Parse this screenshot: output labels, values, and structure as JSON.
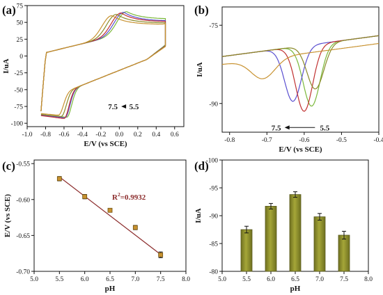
{
  "panel_labels": {
    "a": "(a)",
    "b": "(b)",
    "c": "(c)",
    "d": "(d)"
  },
  "colors": {
    "c55": "#7ab83a",
    "c60": "#5a4fd0",
    "c65": "#c03030",
    "c70": "#8a8a28",
    "c75": "#c89230",
    "fit": "#8b2b2b",
    "bar": "#a5a638",
    "bar_edge": "#5a5a1e"
  },
  "chart_data": [
    {
      "type": "line",
      "panel": "a",
      "xlabel": "E/V (vs SCE)",
      "ylabel": "I/uA",
      "xlim": [
        -1.0,
        0.7
      ],
      "ylim": [
        -105,
        75
      ],
      "x_ticks": [
        "-1.0",
        "-0.8",
        "-0.6",
        "-0.4",
        "-0.2",
        "0.0",
        "0.2",
        "0.4",
        "0.6"
      ],
      "y_ticks": [
        "-100",
        "-75",
        "-50",
        "-25",
        "0",
        "25",
        "50",
        "75"
      ],
      "annotation": {
        "left": "7.5",
        "right": "5.5"
      },
      "series": [
        {
          "color_key": "c55",
          "anodic_peak": [
            0.08,
            66
          ],
          "cathodic_peak": [
            -0.57,
            -91
          ],
          "final_current": [
            0.5,
            55
          ]
        },
        {
          "color_key": "c60",
          "anodic_peak": [
            0.05,
            65
          ],
          "cathodic_peak": [
            -0.59,
            -92
          ],
          "final_current": [
            0.5,
            52
          ]
        },
        {
          "color_key": "c65",
          "anodic_peak": [
            0.02,
            64
          ],
          "cathodic_peak": [
            -0.6,
            -93
          ],
          "final_current": [
            0.5,
            51
          ]
        },
        {
          "color_key": "c70",
          "anodic_peak": [
            -0.03,
            62
          ],
          "cathodic_peak": [
            -0.63,
            -90
          ],
          "final_current": [
            0.5,
            49
          ]
        },
        {
          "color_key": "c75",
          "anodic_peak": [
            -0.08,
            60
          ],
          "cathodic_peak": [
            -0.66,
            -88
          ],
          "final_current": [
            0.5,
            47
          ]
        }
      ]
    },
    {
      "type": "line",
      "panel": "b",
      "xlabel": "E/V (vs SCE)",
      "ylabel": "I/uA",
      "xlim": [
        -0.82,
        -0.4
      ],
      "ylim": [
        -95.5,
        -71.5
      ],
      "x_ticks": [
        "-0.8",
        "-0.7",
        "-0.6",
        "-0.5",
        "-0.4"
      ],
      "y_ticks": [
        "-75",
        "-90"
      ],
      "annotation": {
        "left": "7.5",
        "right": "5.5"
      },
      "series": [
        {
          "color_key": "c55",
          "peak_x": -0.58,
          "peak_y": -92.8
        },
        {
          "color_key": "c60",
          "peak_x": -0.63,
          "peak_y": -91.4
        },
        {
          "color_key": "c65",
          "peak_x": -0.6,
          "peak_y": -93.6
        },
        {
          "color_key": "c70",
          "peak_x": -0.57,
          "peak_y": -89.6
        },
        {
          "color_key": "c75",
          "peak_x": -0.71,
          "peak_y": -84.8
        }
      ]
    },
    {
      "type": "scatter",
      "panel": "c",
      "xlabel": "pH",
      "ylabel": "E/V (vs SCE)",
      "xlim": [
        5.0,
        8.0
      ],
      "ylim": [
        -0.7,
        -0.545
      ],
      "x_ticks": [
        "5.0",
        "5.5",
        "6.0",
        "6.5",
        "7.0",
        "7.5",
        "8.0"
      ],
      "y_ticks": [
        "-0.55",
        "-0.60",
        "-0.65",
        "-0.70"
      ],
      "x": [
        5.5,
        6.0,
        6.5,
        7.0,
        7.5
      ],
      "y": [
        -0.571,
        -0.596,
        -0.615,
        -0.639,
        -0.677
      ],
      "error": [
        0.003,
        0.003,
        0.002,
        0.003,
        0.004
      ],
      "fit": {
        "x": [
          5.5,
          7.5
        ],
        "y": [
          -0.5685,
          -0.6765
        ]
      },
      "annotation_prefix": "R",
      "annotation_sup": "2",
      "annotation_value": "=0.9932"
    },
    {
      "type": "bar",
      "panel": "d",
      "xlabel": "pH",
      "ylabel": "I/uA",
      "xlim": [
        5.0,
        8.0
      ],
      "ylim": [
        -80,
        -100
      ],
      "x_ticks": [
        "5.0",
        "5.5",
        "6.0",
        "6.5",
        "7.0",
        "7.5",
        "8.0"
      ],
      "y_ticks": [
        "-80",
        "-85",
        "-90",
        "-95",
        "-100"
      ],
      "categories": [
        "5.5",
        "6.0",
        "6.5",
        "7.0",
        "7.5"
      ],
      "x": [
        5.5,
        6.0,
        6.5,
        7.0,
        7.5
      ],
      "values": [
        -87.5,
        -91.7,
        -93.8,
        -89.8,
        -86.5
      ],
      "error": [
        0.6,
        0.5,
        0.5,
        0.6,
        0.7
      ]
    }
  ]
}
